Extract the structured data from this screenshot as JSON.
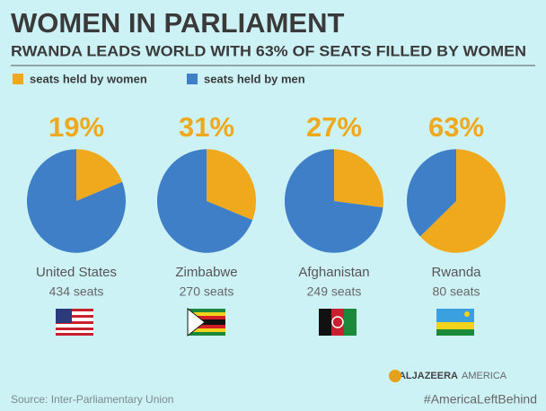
{
  "header": {
    "title": "WOMEN IN PARLIAMENT",
    "subtitle": "RWANDA LEADS WORLD WITH 63% OF SEATS FILLED BY WOMEN"
  },
  "legend": [
    {
      "name": "seats held by women",
      "color": "#f0a81c"
    },
    {
      "name": "seats held by men",
      "color": "#3f7fc8"
    }
  ],
  "chart_data": [
    {
      "type": "pie",
      "title": "United States",
      "subtitle": "434 seats",
      "categories": [
        "seats held by women",
        "seats held by men"
      ],
      "values": [
        19,
        81
      ],
      "value_labels": [
        "19%",
        null
      ],
      "colors": [
        "#f0a81c",
        "#3f7fc8"
      ]
    },
    {
      "type": "pie",
      "title": "Zimbabwe",
      "subtitle": "270 seats",
      "categories": [
        "seats held by women",
        "seats held by men"
      ],
      "values": [
        31,
        69
      ],
      "value_labels": [
        "31%",
        null
      ],
      "colors": [
        "#f0a81c",
        "#3f7fc8"
      ]
    },
    {
      "type": "pie",
      "title": "Afghanistan",
      "subtitle": "249 seats",
      "categories": [
        "seats held by women",
        "seats held by men"
      ],
      "values": [
        27,
        73
      ],
      "value_labels": [
        "27%",
        null
      ],
      "colors": [
        "#f0a81c",
        "#3f7fc8"
      ]
    },
    {
      "type": "pie",
      "title": "Rwanda",
      "subtitle": "80 seats",
      "categories": [
        "seats held by women",
        "seats held by men"
      ],
      "values": [
        63,
        37
      ],
      "value_labels": [
        "63%",
        null
      ],
      "colors": [
        "#f0a81c",
        "#3f7fc8"
      ]
    }
  ],
  "footer": {
    "source": "Source: Inter-Parliamentary Union",
    "brand": "ALJAZEERA",
    "brand_sub": "AMERICA",
    "hashtag": "#AmericaLeftBehind"
  }
}
